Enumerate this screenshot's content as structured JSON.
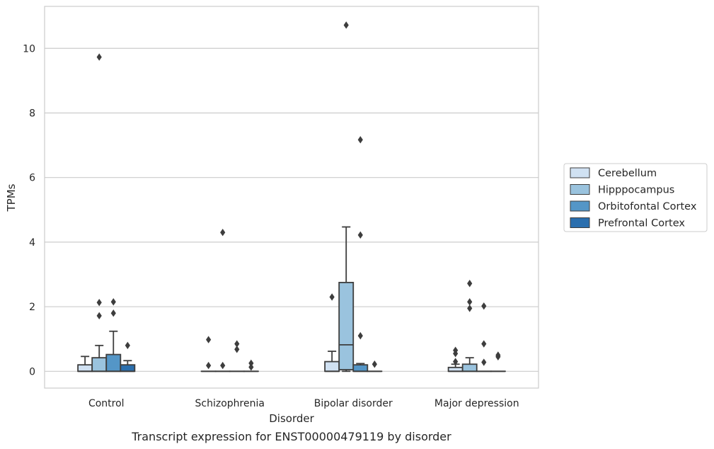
{
  "caption": "Transcript expression for ENST00000479119 by disorder",
  "chart_data": {
    "type": "box",
    "xlabel": "Disorder",
    "ylabel": "TPMs",
    "ylim": [
      -0.52,
      11.3
    ],
    "yticks": [
      "0",
      "2",
      "4",
      "6",
      "8",
      "10"
    ],
    "ytick_values": [
      0,
      2,
      4,
      6,
      8,
      10
    ],
    "grid": "horizontal",
    "legend_position": "right",
    "categories": [
      "Control",
      "Schizophrenia",
      "Bipolar disorder",
      "Major depression"
    ],
    "series": [
      {
        "name": "Cerebellum",
        "color": "#d0e1f2",
        "boxes": [
          {
            "q1": 0,
            "median": 0,
            "q3": 0.2,
            "whislo": 0,
            "whishi": 0.46,
            "fliers": []
          },
          {
            "q1": 0,
            "median": 0,
            "q3": 0,
            "whislo": 0,
            "whishi": 0,
            "fliers": [
              0.98,
              0.18
            ]
          },
          {
            "q1": 0,
            "median": 0,
            "q3": 0.3,
            "whislo": 0,
            "whishi": 0.62,
            "fliers": [
              2.3
            ]
          },
          {
            "q1": 0,
            "median": 0,
            "q3": 0.12,
            "whislo": 0,
            "whishi": 0.22,
            "fliers": [
              0.65,
              0.55,
              0.3
            ]
          }
        ]
      },
      {
        "name": "Hipppocampus",
        "color": "#9ac3de",
        "boxes": [
          {
            "q1": 0,
            "median": 0,
            "q3": 0.42,
            "whislo": 0,
            "whishi": 0.8,
            "fliers": [
              9.73,
              2.13,
              1.72
            ]
          },
          {
            "q1": 0,
            "median": 0,
            "q3": 0,
            "whislo": 0,
            "whishi": 0,
            "fliers": [
              4.3,
              0.18
            ]
          },
          {
            "q1": 0.05,
            "median": 0.82,
            "q3": 2.75,
            "whislo": 0.0,
            "whishi": 4.47,
            "fliers": [
              10.72
            ]
          },
          {
            "q1": 0,
            "median": 0,
            "q3": 0.22,
            "whislo": 0,
            "whishi": 0.42,
            "fliers": [
              2.72,
              2.15,
              1.95
            ]
          }
        ]
      },
      {
        "name": "Orbitofontal Cortex",
        "color": "#5496c7",
        "boxes": [
          {
            "q1": 0,
            "median": 0,
            "q3": 0.52,
            "whislo": 0,
            "whishi": 1.24,
            "fliers": [
              2.15,
              1.8
            ]
          },
          {
            "q1": 0,
            "median": 0,
            "q3": 0,
            "whislo": 0,
            "whishi": 0,
            "fliers": [
              0.85,
              0.68
            ]
          },
          {
            "q1": 0,
            "median": 0,
            "q3": 0.2,
            "whislo": 0,
            "whishi": 0.24,
            "fliers": [
              7.17,
              4.22,
              1.1
            ]
          },
          {
            "q1": 0,
            "median": 0,
            "q3": 0,
            "whislo": 0,
            "whishi": 0,
            "fliers": [
              2.02,
              0.85,
              0.28
            ]
          }
        ]
      },
      {
        "name": "Prefrontal Cortex",
        "color": "#2b6fae",
        "boxes": [
          {
            "q1": 0,
            "median": 0,
            "q3": 0.2,
            "whislo": 0,
            "whishi": 0.33,
            "fliers": [
              0.8
            ]
          },
          {
            "q1": 0,
            "median": 0,
            "q3": 0,
            "whislo": 0,
            "whishi": 0,
            "fliers": [
              0.25,
              0.13
            ]
          },
          {
            "q1": 0,
            "median": 0,
            "q3": 0,
            "whislo": 0,
            "whishi": 0,
            "fliers": [
              0.22
            ]
          },
          {
            "q1": 0,
            "median": 0,
            "q3": 0,
            "whislo": 0,
            "whishi": 0,
            "fliers": [
              0.5,
              0.45
            ]
          }
        ]
      }
    ]
  }
}
